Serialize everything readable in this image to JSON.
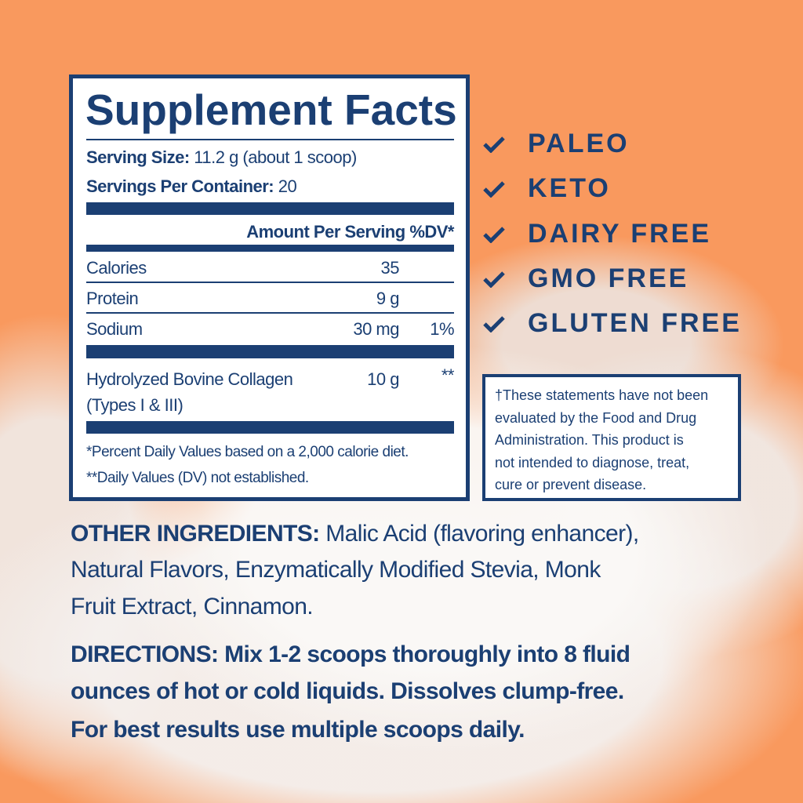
{
  "facts": {
    "title": "Supplement Facts",
    "serving_size_label": "Serving Size:",
    "serving_size_value": "11.2 g (about 1 scoop)",
    "servings_label": "Servings Per Container:",
    "servings_value": "20",
    "header_amount": "Amount Per Serving",
    "header_dv": "%DV*",
    "rows": [
      {
        "name": "Calories",
        "amount": "35",
        "dv": ""
      },
      {
        "name": "Protein",
        "amount": "9 g",
        "dv": ""
      },
      {
        "name": "Sodium",
        "amount": "30 mg",
        "dv": "1%"
      }
    ],
    "collagen": {
      "name_line1": "Hydrolyzed Bovine Collagen",
      "name_line2": "(Types I & III)",
      "amount": "10 g",
      "dv": "**"
    },
    "footnote1": "*Percent Daily Values based on a 2,000 calorie diet.",
    "footnote2": "**Daily Values (DV) not established."
  },
  "claims": [
    "PALEO",
    "KETO",
    "DAIRY FREE",
    "GMO FREE",
    "GLUTEN FREE"
  ],
  "disclaimer": [
    "†These statements have not been",
    "evaluated by the Food and Drug",
    "Administration. This product is",
    "not intended to diagnose, treat,",
    "cure or prevent disease."
  ],
  "ingredients": {
    "label": "OTHER INGREDIENTS:",
    "lines": [
      " Malic Acid (flavoring enhancer),",
      "Natural Flavors, Enzymatically Modified Stevia, Monk",
      "Fruit Extract, Cinnamon."
    ]
  },
  "directions": {
    "lines": [
      "DIRECTIONS: Mix 1-2 scoops thoroughly into 8 fluid",
      "ounces of hot or cold liquids. Dissolves clump-free.",
      "For best results use multiple scoops daily."
    ]
  },
  "colors": {
    "navy": "#1b3f73",
    "background": "#f9995e",
    "panel": "#ffffff"
  }
}
